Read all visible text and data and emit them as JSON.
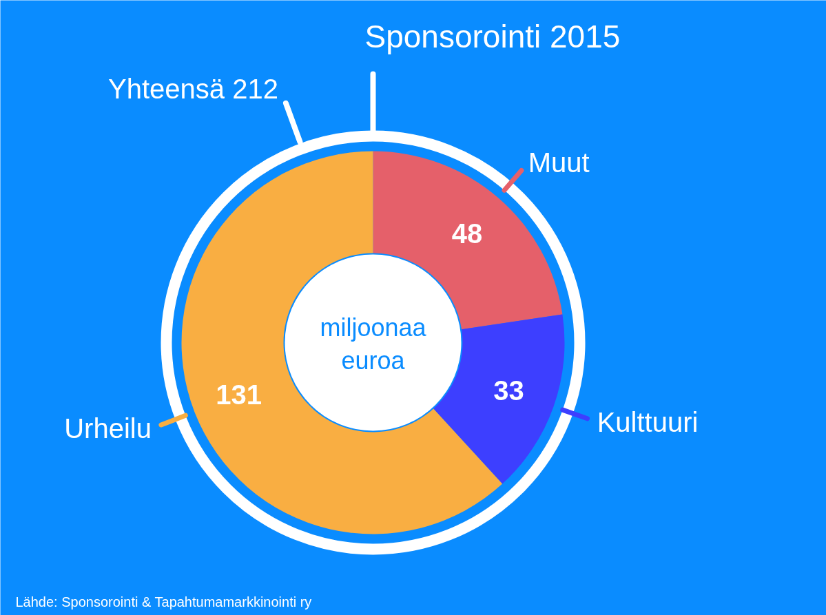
{
  "chart_data": {
    "type": "donut",
    "title": "Sponsorointi 2015",
    "subtitle": "Yhteensä 212",
    "categories": [
      "Muut",
      "Kulttuuri",
      "Urheilu"
    ],
    "values": [
      48,
      33,
      131
    ],
    "colors": [
      "#e5606a",
      "#3d3fff",
      "#f9ae42"
    ],
    "data_labels": true,
    "annotations": [
      "miljoonaa euroa",
      "Lähde: Sponsorointi & Tapahtumamarkkinointi ry"
    ]
  }
}
